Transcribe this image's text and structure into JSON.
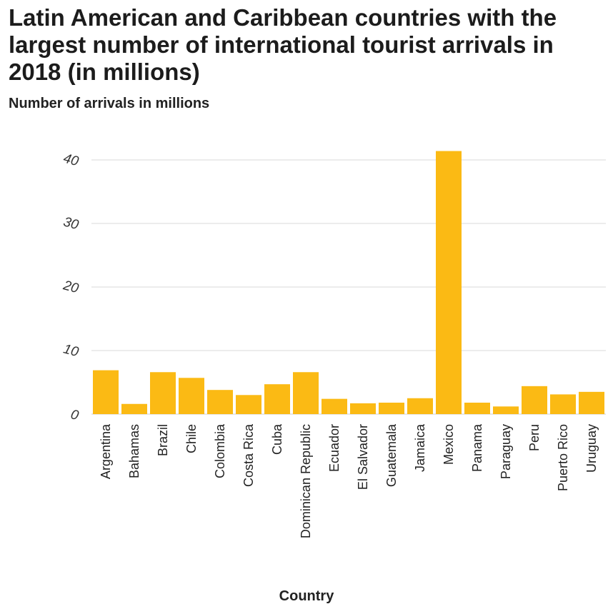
{
  "chart_data": {
    "type": "bar",
    "title": "Latin American and Caribbean countries with the largest number of international tourist arrivals in 2018 (in millions)",
    "ylabel": "Number of arrivals in millions",
    "xlabel": "Country",
    "ylim": [
      0,
      45
    ],
    "yticks": [
      0,
      10,
      20,
      30,
      40
    ],
    "grid": true,
    "color": "#fbba14",
    "categories": [
      "Argentina",
      "Bahamas",
      "Brazil",
      "Chile",
      "Colombia",
      "Costa Rica",
      "Cuba",
      "Dominican Republic",
      "Ecuador",
      "El Salvador",
      "Guatemala",
      "Jamaica",
      "Mexico",
      "Panama",
      "Paraguay",
      "Peru",
      "Puerto Rico",
      "Uruguay"
    ],
    "values": [
      6.9,
      1.6,
      6.6,
      5.7,
      3.8,
      3.0,
      4.7,
      6.6,
      2.4,
      1.7,
      1.8,
      2.5,
      41.4,
      1.8,
      1.2,
      4.4,
      3.1,
      3.5
    ]
  }
}
